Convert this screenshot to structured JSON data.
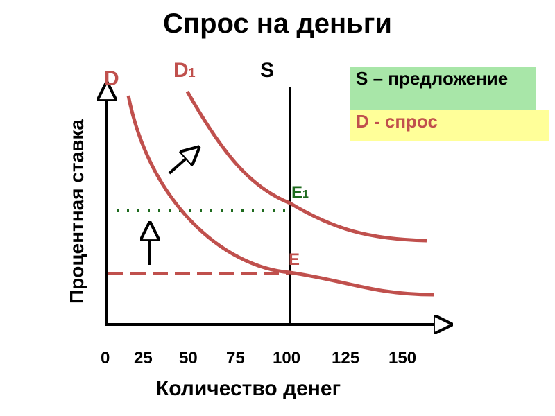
{
  "title": "Спрос на деньги",
  "legend": {
    "s_text": "S – предложение",
    "d_text": "D - спрос"
  },
  "labels": {
    "d": "D",
    "d1": "D",
    "d1_sub": "1",
    "s": "S",
    "e": "E",
    "e1": "E",
    "e1_sub": "1"
  },
  "colors": {
    "curve": "#c0504d",
    "supply": "#000000",
    "dotted": "#1e6b1e",
    "e1_label": "#1e6b1e",
    "e_label": "#c0504d",
    "legend_s_bg": "#a8e6a8",
    "legend_d_bg": "#ffff99"
  },
  "chart_data": {
    "type": "line",
    "xlabel": "Количество денег",
    "ylabel": "Процентная ставка",
    "x_ticks": [
      "0",
      "25",
      "50",
      "75",
      "100",
      "125",
      "150"
    ],
    "xlim": [
      0,
      160
    ],
    "series": [
      {
        "name": "D",
        "points": [
          [
            10,
            9.0
          ],
          [
            25,
            5.6
          ],
          [
            50,
            3.1
          ],
          [
            75,
            2.1
          ],
          [
            100,
            1.6
          ],
          [
            125,
            1.0
          ],
          [
            150,
            0.95
          ]
        ]
      },
      {
        "name": "D1",
        "points": [
          [
            40,
            9.0
          ],
          [
            50,
            7.4
          ],
          [
            75,
            4.4
          ],
          [
            100,
            3.5
          ],
          [
            125,
            2.3
          ],
          [
            150,
            2.3
          ]
        ]
      },
      {
        "name": "S",
        "points": [
          [
            100,
            0
          ],
          [
            100,
            9.0
          ]
        ]
      }
    ],
    "equilibria": [
      {
        "name": "E",
        "x": 100,
        "y": 1.6
      },
      {
        "name": "E1",
        "x": 100,
        "y": 3.5
      }
    ]
  }
}
